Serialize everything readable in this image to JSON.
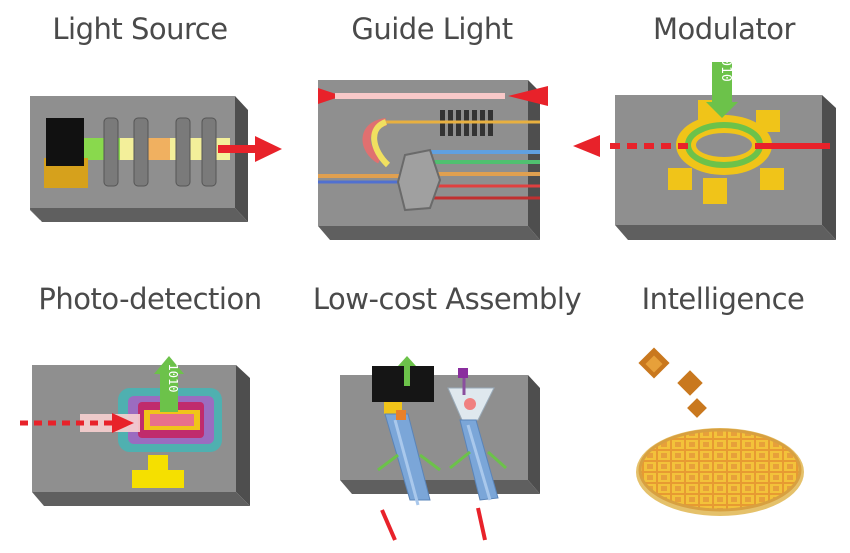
{
  "panels": {
    "light_source": {
      "label": "Light Source"
    },
    "guide_light": {
      "label": "Guide Light"
    },
    "modulator": {
      "label": "Modulator",
      "bits": "1010"
    },
    "photo_detection": {
      "label": "Photo-detection",
      "bits": "1010"
    },
    "assembly": {
      "label": "Low-cost Assembly"
    },
    "intelligence": {
      "label": "Intelligence"
    }
  },
  "colors": {
    "chip_top": "#8f8f8f",
    "chip_side": "#505050",
    "chip_front": "#6a6a6a",
    "laser_red": "#e8222a",
    "gold": "#f0c419",
    "green": "#6cc24a",
    "purple": "#8a4f9e"
  }
}
